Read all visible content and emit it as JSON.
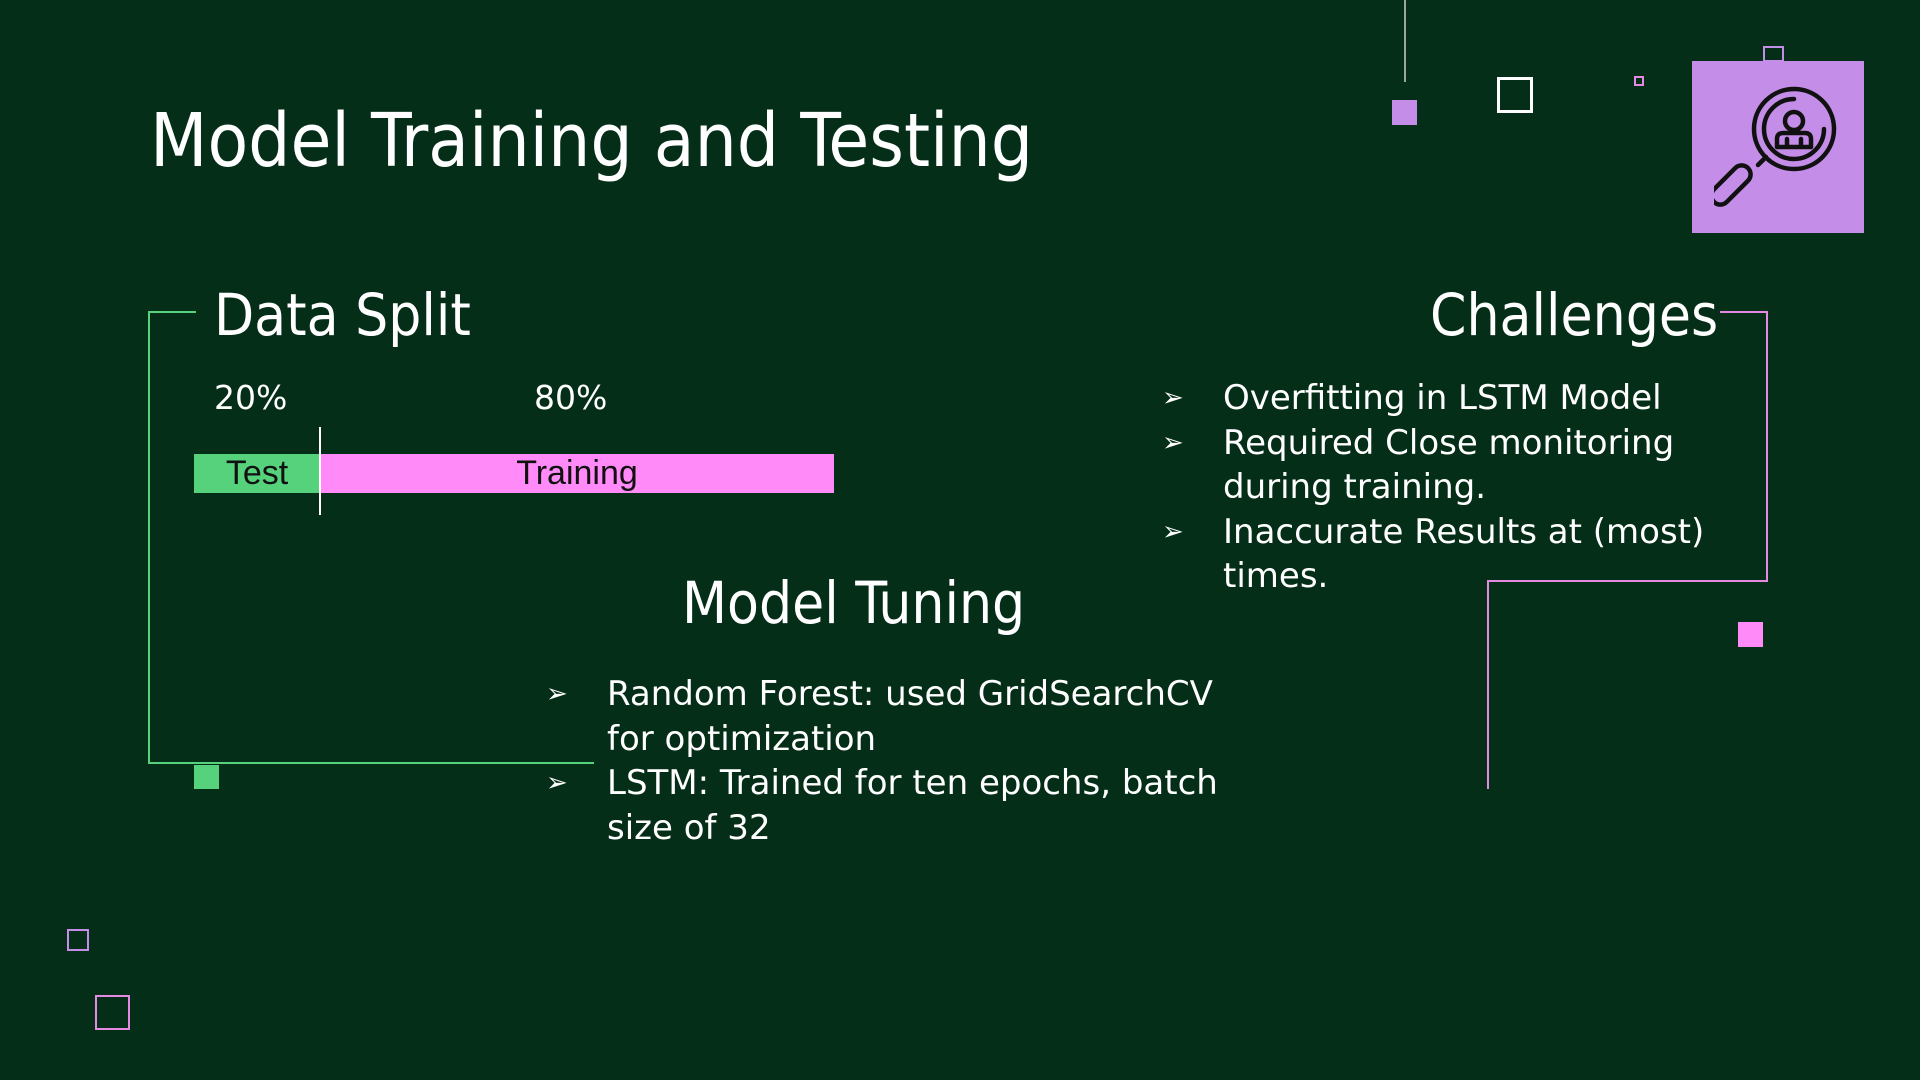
{
  "slide": {
    "title": "Model Training and Testing"
  },
  "data_split": {
    "heading": "Data Split",
    "test_percent": "20%",
    "training_percent": "80%",
    "test_label": "Test",
    "training_label": "Training",
    "test_fraction": 0.2,
    "training_fraction": 0.8
  },
  "model_tuning": {
    "heading": "Model Tuning",
    "items": [
      "Random Forest: used GridSearchCV for optimization",
      "LSTM: Trained for ten epochs, batch size of 32"
    ]
  },
  "challenges": {
    "heading": "Challenges",
    "items": [
      "Overfitting in LSTM Model",
      "Required Close monitoring during training.",
      "Inaccurate Results at (most) times."
    ]
  },
  "icons": {
    "bullet": "arrowhead-bullet-icon",
    "tile": "magnifier-user-icon"
  },
  "colors": {
    "background": "#052e19",
    "green_accent": "#55d27b",
    "pink_accent": "#ff8af8",
    "lilac_accent": "#c48ee8"
  }
}
